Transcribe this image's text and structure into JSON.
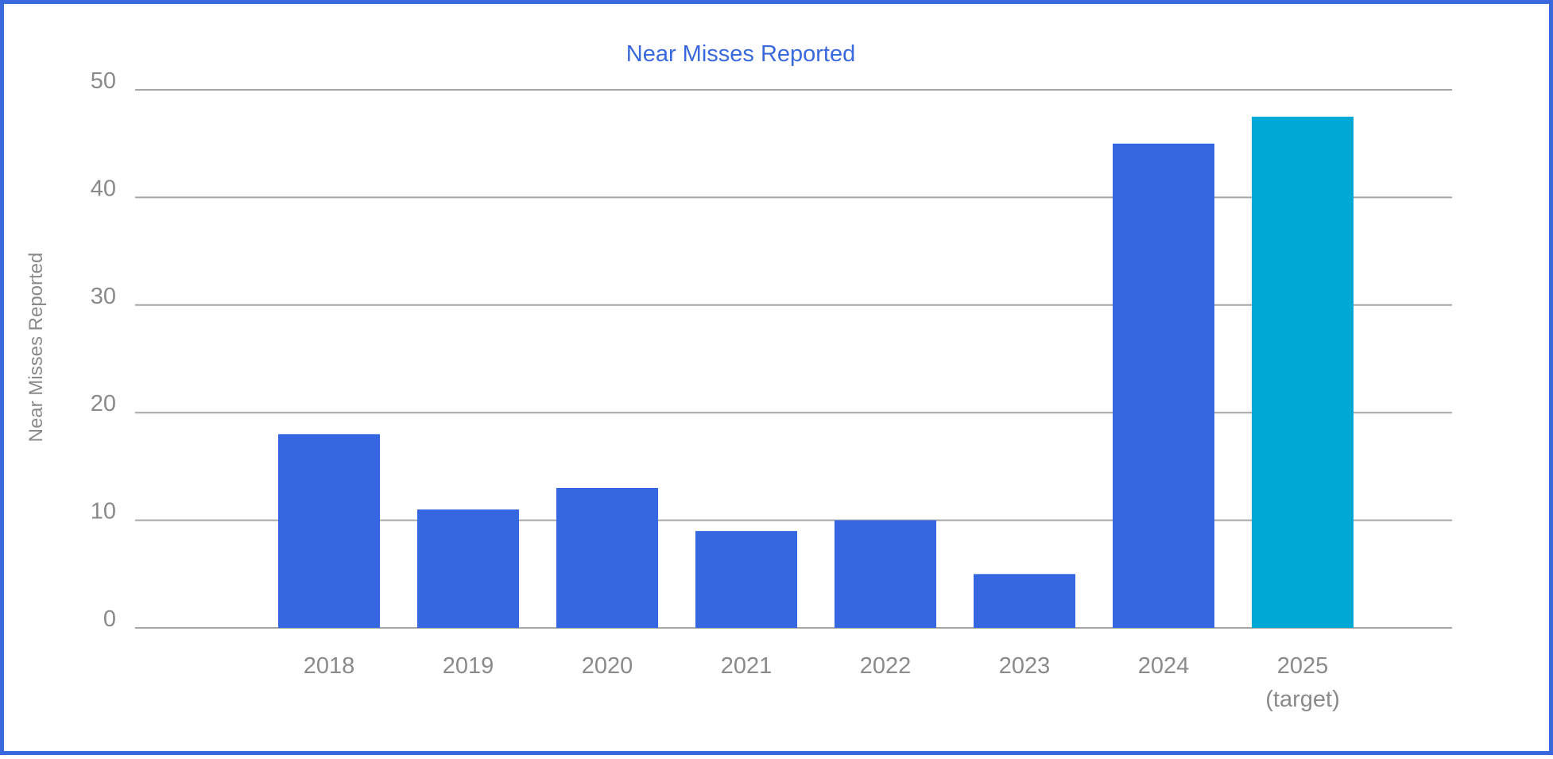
{
  "chart_data": {
    "type": "bar",
    "title": "Near Misses Reported",
    "ylabel": "Near Misses Reported",
    "xlabel": "",
    "categories": [
      [
        "2018"
      ],
      [
        "2019"
      ],
      [
        "2020"
      ],
      [
        "2021"
      ],
      [
        "2022"
      ],
      [
        "2023"
      ],
      [
        "2024"
      ],
      [
        "2025",
        "(target)"
      ]
    ],
    "values": [
      18,
      11,
      13,
      9,
      10,
      5,
      45,
      47.5
    ],
    "bar_colors": [
      "#3467e0",
      "#3467e0",
      "#3467e0",
      "#3467e0",
      "#3467e0",
      "#3467e0",
      "#3467e0",
      "#00a8d6"
    ],
    "ylim": [
      0,
      50
    ],
    "yticks": [
      0,
      10,
      20,
      30,
      40,
      50
    ],
    "grid": true,
    "legend": "none"
  }
}
